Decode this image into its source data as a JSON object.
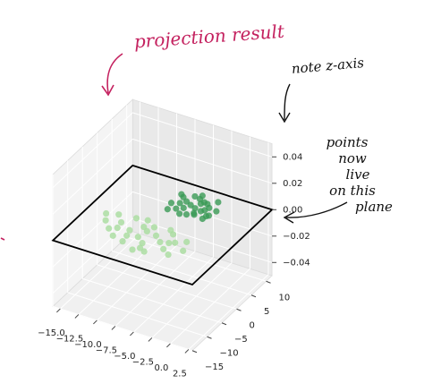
{
  "chart_data": {
    "type": "scatter3d",
    "xlim": [
      -16,
      3
    ],
    "ylim": [
      -15,
      12
    ],
    "zlim": [
      -0.05,
      0.05
    ],
    "xticks": [
      {
        "value": -15,
        "label": "−15.0"
      },
      {
        "value": -12.5,
        "label": "−12.5"
      },
      {
        "value": -10,
        "label": "−10.0"
      },
      {
        "value": -7.5,
        "label": "−7.5"
      },
      {
        "value": -5,
        "label": "−5.0"
      },
      {
        "value": -2.5,
        "label": "−2.5"
      },
      {
        "value": 0,
        "label": "0.0"
      },
      2.5
    ],
    "yticks": [
      {
        "value": -15,
        "label": "−15"
      },
      {
        "value": -10,
        "label": "−10"
      },
      {
        "value": -5,
        "label": "−5"
      },
      0,
      5,
      10
    ],
    "zticks": [
      0.04,
      0.02,
      {
        "value": 0,
        "label": "0.00"
      },
      {
        "value": -0.02,
        "label": "−0.02"
      },
      {
        "value": -0.04,
        "label": "−0.04"
      }
    ],
    "grid": true,
    "series": [
      {
        "color": "#a8dc9e",
        "x": [
          -13.5,
          -12.8,
          -12.1,
          -11.6,
          -11.0,
          -10.4,
          -9.9,
          -9.3,
          -8.8,
          -8.2,
          -7.7,
          -7.1,
          -6.6,
          -6.0,
          -5.5,
          -4.9,
          -4.4,
          -3.8,
          -3.3,
          -2.7,
          -2.2,
          -1.6,
          -10.8,
          -9.0,
          -7.4,
          -6.3,
          -5.1,
          -3.9,
          -8.5,
          -6.9
        ],
        "y": [
          -3.2,
          -5.1,
          -2.4,
          -7.0,
          -4.3,
          -8.6,
          -1.9,
          -5.7,
          -9.3,
          -3.6,
          -6.8,
          -2.8,
          -8.1,
          -4.9,
          -10.2,
          -6.3,
          -3.1,
          -7.9,
          -5.2,
          -9.0,
          -4.0,
          -6.7,
          -6.1,
          -7.4,
          -4.5,
          -9.6,
          -2.2,
          -5.8,
          -1.5,
          -10.7
        ],
        "z": [
          0,
          0,
          0,
          0,
          0,
          0,
          0,
          0,
          0,
          0,
          0,
          0,
          0,
          0,
          0,
          0,
          0,
          0,
          0,
          0,
          0,
          0,
          0,
          0,
          0,
          0,
          0,
          0,
          0,
          0
        ]
      },
      {
        "color": "#3a9a55",
        "x": [
          -8.0,
          -7.4,
          -6.9,
          -6.3,
          -5.8,
          -5.2,
          -4.7,
          -4.1,
          -3.6,
          -3.0,
          -2.5,
          -7.7,
          -6.6,
          -5.5,
          -4.4,
          -3.3,
          -7.1,
          -6.0,
          -4.9,
          -3.8,
          -2.8,
          -5.0,
          -6.2,
          -4.2,
          -7.9,
          -3.1,
          -5.6,
          -4.6
        ],
        "y": [
          5.2,
          7.8,
          4.1,
          9.0,
          6.3,
          3.4,
          8.2,
          5.5,
          7.1,
          4.6,
          6.8,
          3.2,
          6.9,
          8.7,
          4.0,
          9.4,
          5.9,
          3.0,
          7.5,
          6.1,
          5.0,
          5.8,
          4.9,
          8.0,
          8.4,
          3.6,
          9.8,
          4.4
        ],
        "z": [
          0,
          0,
          0,
          0,
          0,
          0,
          0,
          0,
          0,
          0,
          0,
          0,
          0,
          0,
          0,
          0,
          0,
          0,
          0,
          0,
          0,
          0,
          0,
          0,
          0,
          0,
          0,
          0
        ]
      }
    ],
    "annotations": [
      [
        "projection result"
      ],
      [
        "note z-axis"
      ],
      [
        "points",
        "now",
        "live",
        "on this",
        "plane"
      ]
    ]
  }
}
